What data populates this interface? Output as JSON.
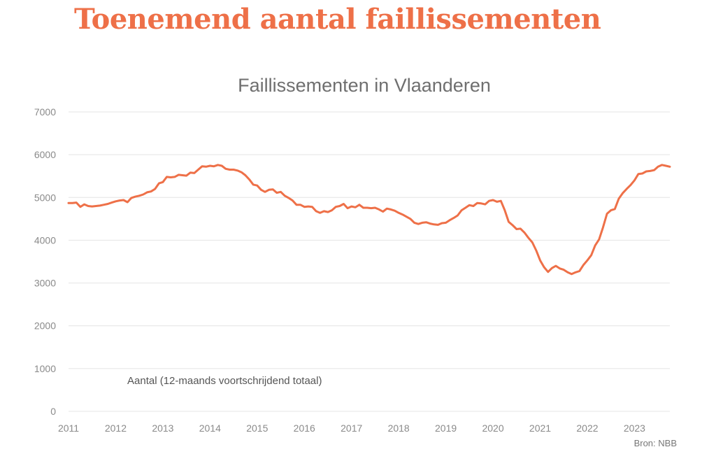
{
  "headline": "Toenemend aantal faillissementen",
  "source": "Bron: NBB",
  "colors": {
    "accent": "#ee7048",
    "grid": "#e4e4e4",
    "text": "#6f6f6f"
  },
  "chart_data": {
    "type": "line",
    "title": "Faillissementen in Vlaanderen",
    "xlabel": "",
    "ylabel": "",
    "ylim": [
      0,
      7000
    ],
    "xlim": [
      "2011-01",
      "2023-10"
    ],
    "grid": true,
    "y_ticks": [
      "0",
      "1000",
      "2000",
      "3000",
      "4000",
      "5000",
      "6000",
      "7000"
    ],
    "x_ticks": [
      "2011",
      "2012",
      "2013",
      "2014",
      "2015",
      "2016",
      "2017",
      "2018",
      "2019",
      "2020",
      "2021",
      "2022",
      "2023"
    ],
    "annotation": "Aantal (12-maands voortschrijdend totaal)",
    "series": [
      {
        "color": "#ee7048",
        "points": [
          [
            "2011-01",
            4870
          ],
          [
            "2011-02",
            4870
          ],
          [
            "2011-03",
            4880
          ],
          [
            "2011-04",
            4780
          ],
          [
            "2011-05",
            4840
          ],
          [
            "2011-06",
            4800
          ],
          [
            "2011-07",
            4790
          ],
          [
            "2011-08",
            4800
          ],
          [
            "2011-09",
            4810
          ],
          [
            "2011-10",
            4830
          ],
          [
            "2011-11",
            4850
          ],
          [
            "2011-12",
            4880
          ],
          [
            "2012-01",
            4910
          ],
          [
            "2012-02",
            4930
          ],
          [
            "2012-03",
            4940
          ],
          [
            "2012-04",
            4890
          ],
          [
            "2012-05",
            4990
          ],
          [
            "2012-06",
            5020
          ],
          [
            "2012-07",
            5040
          ],
          [
            "2012-08",
            5070
          ],
          [
            "2012-09",
            5120
          ],
          [
            "2012-10",
            5140
          ],
          [
            "2012-11",
            5200
          ],
          [
            "2012-12",
            5330
          ],
          [
            "2013-01",
            5360
          ],
          [
            "2013-02",
            5480
          ],
          [
            "2013-03",
            5470
          ],
          [
            "2013-04",
            5480
          ],
          [
            "2013-05",
            5530
          ],
          [
            "2013-06",
            5520
          ],
          [
            "2013-07",
            5510
          ],
          [
            "2013-08",
            5580
          ],
          [
            "2013-09",
            5570
          ],
          [
            "2013-10",
            5650
          ],
          [
            "2013-11",
            5730
          ],
          [
            "2013-12",
            5720
          ],
          [
            "2014-01",
            5740
          ],
          [
            "2014-02",
            5730
          ],
          [
            "2014-03",
            5760
          ],
          [
            "2014-04",
            5740
          ],
          [
            "2014-05",
            5670
          ],
          [
            "2014-06",
            5650
          ],
          [
            "2014-07",
            5650
          ],
          [
            "2014-08",
            5630
          ],
          [
            "2014-09",
            5590
          ],
          [
            "2014-10",
            5520
          ],
          [
            "2014-11",
            5420
          ],
          [
            "2014-12",
            5300
          ],
          [
            "2015-01",
            5280
          ],
          [
            "2015-02",
            5180
          ],
          [
            "2015-03",
            5130
          ],
          [
            "2015-04",
            5180
          ],
          [
            "2015-05",
            5190
          ],
          [
            "2015-06",
            5110
          ],
          [
            "2015-07",
            5130
          ],
          [
            "2015-08",
            5040
          ],
          [
            "2015-09",
            4990
          ],
          [
            "2015-10",
            4930
          ],
          [
            "2015-11",
            4830
          ],
          [
            "2015-12",
            4830
          ],
          [
            "2016-01",
            4780
          ],
          [
            "2016-02",
            4790
          ],
          [
            "2016-03",
            4780
          ],
          [
            "2016-04",
            4680
          ],
          [
            "2016-05",
            4640
          ],
          [
            "2016-06",
            4680
          ],
          [
            "2016-07",
            4660
          ],
          [
            "2016-08",
            4700
          ],
          [
            "2016-09",
            4780
          ],
          [
            "2016-10",
            4800
          ],
          [
            "2016-11",
            4850
          ],
          [
            "2016-12",
            4750
          ],
          [
            "2017-01",
            4790
          ],
          [
            "2017-02",
            4770
          ],
          [
            "2017-03",
            4830
          ],
          [
            "2017-04",
            4760
          ],
          [
            "2017-05",
            4760
          ],
          [
            "2017-06",
            4750
          ],
          [
            "2017-07",
            4760
          ],
          [
            "2017-08",
            4720
          ],
          [
            "2017-09",
            4670
          ],
          [
            "2017-10",
            4740
          ],
          [
            "2017-11",
            4720
          ],
          [
            "2017-12",
            4690
          ],
          [
            "2018-01",
            4640
          ],
          [
            "2018-02",
            4600
          ],
          [
            "2018-03",
            4550
          ],
          [
            "2018-04",
            4500
          ],
          [
            "2018-05",
            4410
          ],
          [
            "2018-06",
            4380
          ],
          [
            "2018-07",
            4410
          ],
          [
            "2018-08",
            4420
          ],
          [
            "2018-09",
            4390
          ],
          [
            "2018-10",
            4370
          ],
          [
            "2018-11",
            4360
          ],
          [
            "2018-12",
            4400
          ],
          [
            "2019-01",
            4410
          ],
          [
            "2019-02",
            4470
          ],
          [
            "2019-03",
            4520
          ],
          [
            "2019-04",
            4580
          ],
          [
            "2019-05",
            4700
          ],
          [
            "2019-06",
            4760
          ],
          [
            "2019-07",
            4820
          ],
          [
            "2019-08",
            4800
          ],
          [
            "2019-09",
            4870
          ],
          [
            "2019-10",
            4860
          ],
          [
            "2019-11",
            4840
          ],
          [
            "2019-12",
            4920
          ],
          [
            "2020-01",
            4940
          ],
          [
            "2020-02",
            4900
          ],
          [
            "2020-03",
            4920
          ],
          [
            "2020-04",
            4700
          ],
          [
            "2020-05",
            4430
          ],
          [
            "2020-06",
            4350
          ],
          [
            "2020-07",
            4260
          ],
          [
            "2020-08",
            4270
          ],
          [
            "2020-09",
            4180
          ],
          [
            "2020-10",
            4060
          ],
          [
            "2020-11",
            3950
          ],
          [
            "2020-12",
            3760
          ],
          [
            "2021-01",
            3530
          ],
          [
            "2021-02",
            3370
          ],
          [
            "2021-03",
            3260
          ],
          [
            "2021-04",
            3350
          ],
          [
            "2021-05",
            3400
          ],
          [
            "2021-06",
            3340
          ],
          [
            "2021-07",
            3310
          ],
          [
            "2021-08",
            3250
          ],
          [
            "2021-09",
            3210
          ],
          [
            "2021-10",
            3250
          ],
          [
            "2021-11",
            3280
          ],
          [
            "2021-12",
            3420
          ],
          [
            "2022-01",
            3530
          ],
          [
            "2022-02",
            3650
          ],
          [
            "2022-03",
            3880
          ],
          [
            "2022-04",
            4020
          ],
          [
            "2022-05",
            4300
          ],
          [
            "2022-06",
            4620
          ],
          [
            "2022-07",
            4700
          ],
          [
            "2022-08",
            4730
          ],
          [
            "2022-09",
            4970
          ],
          [
            "2022-10",
            5100
          ],
          [
            "2022-11",
            5200
          ],
          [
            "2022-12",
            5290
          ],
          [
            "2023-01",
            5400
          ],
          [
            "2023-02",
            5550
          ],
          [
            "2023-03",
            5560
          ],
          [
            "2023-04",
            5610
          ],
          [
            "2023-05",
            5620
          ],
          [
            "2023-06",
            5640
          ],
          [
            "2023-07",
            5720
          ],
          [
            "2023-08",
            5760
          ],
          [
            "2023-09",
            5740
          ],
          [
            "2023-10",
            5720
          ]
        ]
      }
    ]
  }
}
